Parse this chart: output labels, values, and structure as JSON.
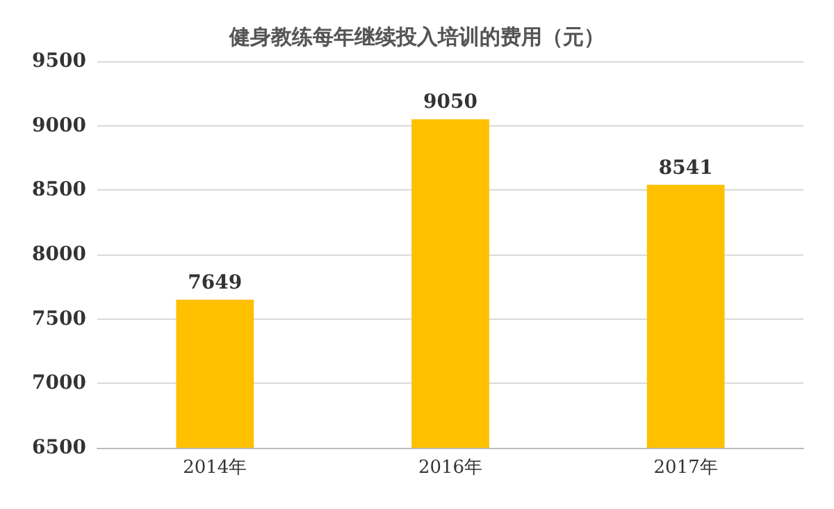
{
  "chart_data": {
    "type": "bar",
    "title": "健身教练每年继续投入培训的费用（元）",
    "categories": [
      "2014年",
      "2016年",
      "2017年"
    ],
    "values": [
      7649,
      9050,
      8541
    ],
    "color": "#ffc000",
    "ylim": [
      6500,
      9500
    ],
    "yticks": [
      6500,
      7000,
      7500,
      8000,
      8500,
      9000,
      9500
    ],
    "grid": "y",
    "data_labels": true
  }
}
